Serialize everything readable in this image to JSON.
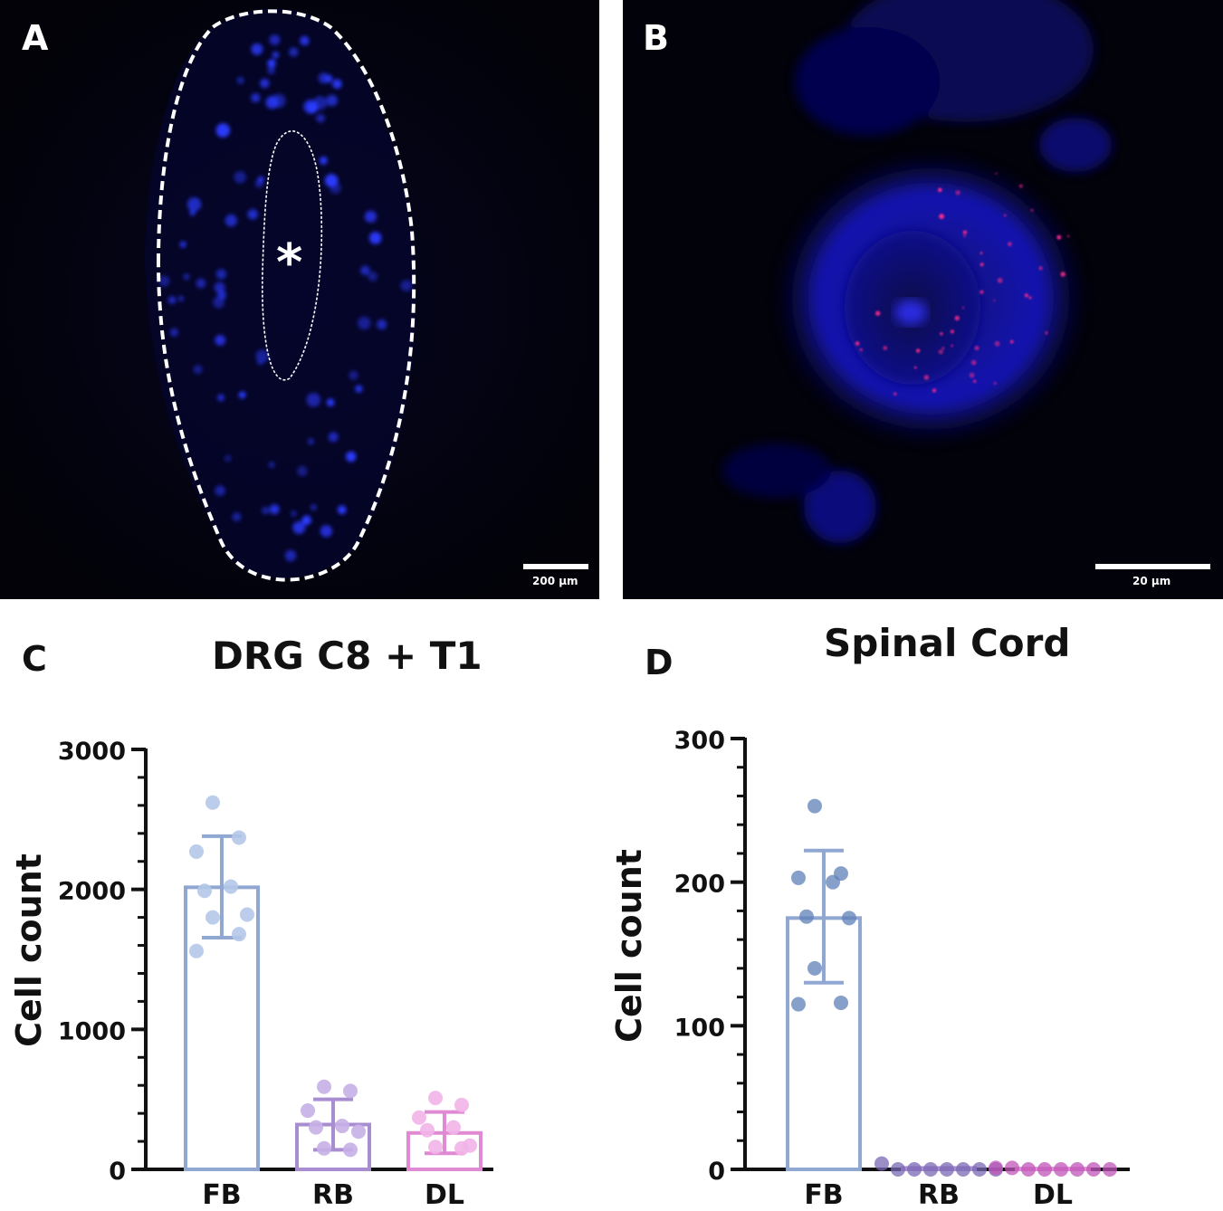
{
  "panels": {
    "a": {
      "letter": "A",
      "scale_label": "200 µm",
      "center_mark": "*"
    },
    "b": {
      "letter": "B",
      "scale_label": "20 µm"
    },
    "c": {
      "letter": "C"
    },
    "d": {
      "letter": "D"
    }
  },
  "colors": {
    "fb": "#8fa7d1",
    "fb_dots": "#b4c8e8",
    "rb": "#a88ed0",
    "rb_dots": "#c6b0e6",
    "dl": "#df8ad2",
    "dl_dots": "#f2b4e8",
    "fb_d": "#5f80b8",
    "rb_d": "#7a68b4",
    "dl_d": "#c055b8"
  },
  "chart_data": [
    {
      "type": "bar",
      "title": "DRG C8 + T1",
      "ylabel": "Cell count",
      "categories": [
        "FB",
        "RB",
        "DL"
      ],
      "values": [
        2015,
        320,
        260
      ],
      "error_low": [
        1655,
        140,
        115
      ],
      "error_high": [
        2380,
        500,
        410
      ],
      "points": [
        [
          2620,
          2370,
          2270,
          2020,
          1990,
          1820,
          1800,
          1680,
          1560
        ],
        [
          590,
          560,
          420,
          310,
          300,
          270,
          150,
          140
        ],
        [
          510,
          460,
          370,
          300,
          280,
          170,
          160,
          150
        ]
      ],
      "ylim": [
        0,
        3000
      ],
      "yticks": [
        0,
        1000,
        2000,
        3000
      ]
    },
    {
      "type": "bar",
      "title": "Spinal Cord",
      "ylabel": "Cell count",
      "categories": [
        "FB",
        "RB",
        "DL"
      ],
      "values": [
        175,
        1,
        0.5
      ],
      "error_low": [
        130,
        0,
        0
      ],
      "error_high": [
        222,
        0,
        0
      ],
      "points": [
        [
          253,
          206,
          203,
          200,
          176,
          175,
          140,
          116,
          115
        ],
        [
          4,
          0,
          0,
          0,
          0,
          0,
          0,
          0
        ],
        [
          1,
          1,
          0,
          0,
          0,
          0,
          0,
          0
        ]
      ],
      "ylim": [
        0,
        300
      ],
      "yticks": [
        0,
        100,
        200,
        300
      ]
    }
  ]
}
